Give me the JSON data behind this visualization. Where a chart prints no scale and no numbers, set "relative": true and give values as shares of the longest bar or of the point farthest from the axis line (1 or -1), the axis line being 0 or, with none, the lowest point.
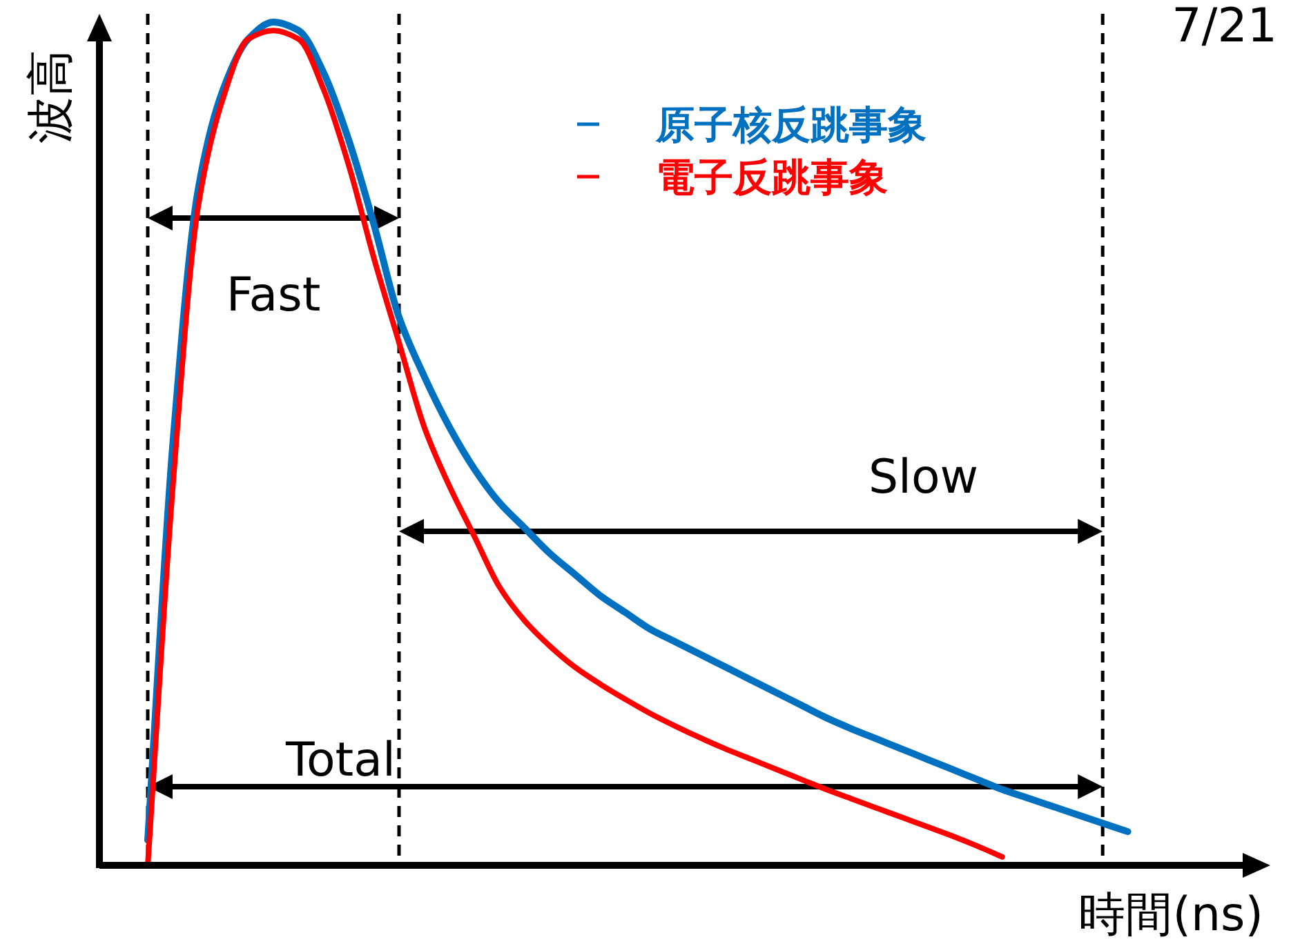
{
  "chart_data": {
    "type": "line",
    "relative": true,
    "xlabel": "時間(ns)",
    "ylabel": "波高",
    "legend": "top right",
    "grid": "x",
    "line_style": "solid",
    "marker": "none",
    "categories": [
      null,
      null,
      null,
      null,
      null,
      null,
      null,
      null,
      null,
      null,
      null,
      null,
      null,
      null,
      null,
      null,
      null,
      null,
      null,
      null,
      null,
      null,
      null,
      null,
      null,
      null,
      null,
      null,
      null,
      null,
      null,
      null,
      null,
      null,
      null,
      null,
      null,
      null,
      null,
      null
    ],
    "series": [
      {
        "name": "原子核反跳事象",
        "color": "#0070c0",
        "values": [
          0.03,
          0.5,
          0.8,
          0.92,
          0.98,
          1.0,
          0.99,
          0.94,
          0.86,
          0.76,
          0.65,
          0.58,
          0.52,
          0.47,
          0.43,
          0.4,
          0.37,
          0.345,
          0.32,
          0.3,
          0.28,
          0.265,
          0.25,
          0.235,
          0.22,
          0.205,
          0.19,
          0.175,
          0.162,
          0.15,
          0.138,
          0.126,
          0.114,
          0.102,
          0.09,
          0.08,
          0.07,
          0.06,
          0.05,
          0.04
        ]
      },
      {
        "name": "電子反跳事象",
        "color": "#ff0000",
        "values": [
          0,
          0.45,
          0.78,
          0.91,
          0.98,
          0.99,
          0.98,
          0.92,
          0.83,
          0.72,
          0.62,
          0.52,
          0.45,
          0.39,
          0.33,
          0.29,
          0.26,
          0.235,
          0.215,
          0.197,
          0.18,
          0.165,
          0.151,
          0.138,
          0.126,
          0.114,
          0.102,
          0.09,
          0.079,
          0.068,
          0.057,
          0.046,
          0.035,
          0.023,
          0.01,
          null,
          null,
          null,
          null,
          null
        ]
      }
    ],
    "annotations": [
      "Fast",
      "Slow",
      "Total",
      "7/21"
    ]
  }
}
